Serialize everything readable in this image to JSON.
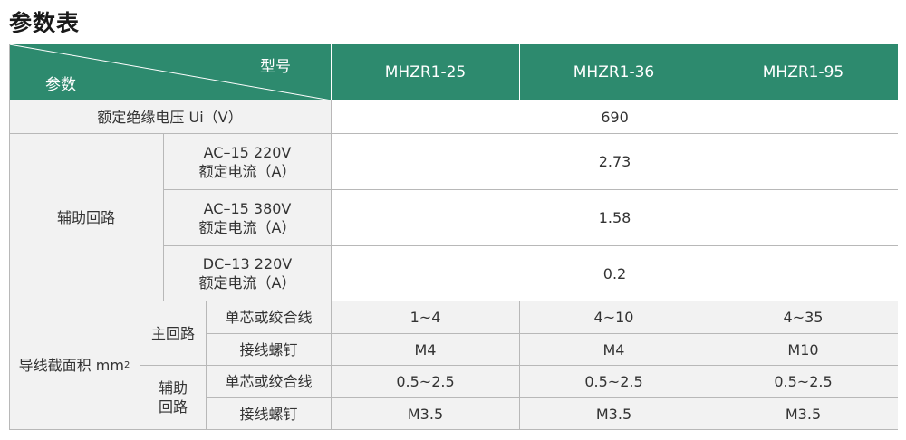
{
  "page_title": "参数表",
  "header": {
    "model_label": "型号",
    "param_label": "参数",
    "models": [
      "MHZR1-25",
      "MHZR1-36",
      "MHZR1-95"
    ]
  },
  "rated_voltage": {
    "label": "额定绝缘电压 Ui（V）",
    "value": "690"
  },
  "aux_circuit": {
    "label": "辅助回路",
    "rows": [
      {
        "line1": "AC–15 220V",
        "line2": "额定电流（A）",
        "value": "2.73"
      },
      {
        "line1": "AC–15 380V",
        "line2": "额定电流（A）",
        "value": "1.58"
      },
      {
        "line1": "DC–13 220V",
        "line2": "额定电流（A）",
        "value": "0.2"
      }
    ]
  },
  "wire_section": {
    "label": "导线截面积 mm",
    "label_sup": "2",
    "main_label": "主回路",
    "aux_label_1": "辅助",
    "aux_label_2": "回路",
    "rows": [
      {
        "sub": "单芯或绞合线",
        "values": [
          "1~4",
          "4~10",
          "4~35"
        ]
      },
      {
        "sub": "接线螺钉",
        "values": [
          "M4",
          "M4",
          "M10"
        ]
      },
      {
        "sub": "单芯或绞合线",
        "values": [
          "0.5~2.5",
          "0.5~2.5",
          "0.5~2.5"
        ]
      },
      {
        "sub": "接线螺钉",
        "values": [
          "M3.5",
          "M3.5",
          "M3.5"
        ]
      }
    ]
  }
}
